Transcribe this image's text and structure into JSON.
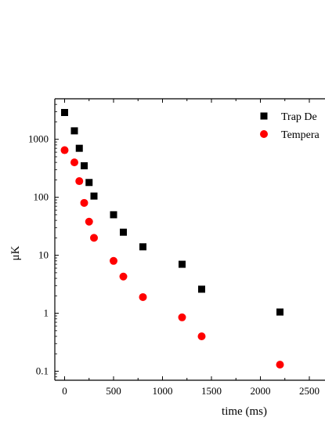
{
  "chart_data": {
    "type": "scatter",
    "xlabel": "time (ms)",
    "ylabel": "μK",
    "y_scale": "log",
    "xlim": [
      -100,
      2700
    ],
    "ylim": [
      0.07,
      5000
    ],
    "grid": false,
    "legend_position": "top-right",
    "x_ticks": [
      0,
      500,
      1000,
      1500,
      2000,
      2500
    ],
    "x_tick_labels": [
      "0",
      "500",
      "1000",
      "1500",
      "2000",
      "2500"
    ],
    "y_ticks": [
      0.1,
      1,
      10,
      100,
      1000
    ],
    "y_tick_labels": [
      "0.1",
      "1",
      "10",
      "100",
      "1000"
    ],
    "series": [
      {
        "name": "Trap De",
        "marker": "square",
        "color": "#000000",
        "points": [
          {
            "x": 0,
            "y": 2900
          },
          {
            "x": 100,
            "y": 1400
          },
          {
            "x": 150,
            "y": 700
          },
          {
            "x": 200,
            "y": 350
          },
          {
            "x": 250,
            "y": 180
          },
          {
            "x": 300,
            "y": 105
          },
          {
            "x": 500,
            "y": 50
          },
          {
            "x": 600,
            "y": 25
          },
          {
            "x": 800,
            "y": 14
          },
          {
            "x": 1200,
            "y": 7
          },
          {
            "x": 1400,
            "y": 2.6
          },
          {
            "x": 2200,
            "y": 1.05
          }
        ]
      },
      {
        "name": "Tempera",
        "marker": "circle",
        "color": "#ff0000",
        "points": [
          {
            "x": 0,
            "y": 650
          },
          {
            "x": 100,
            "y": 400
          },
          {
            "x": 150,
            "y": 190
          },
          {
            "x": 200,
            "y": 80
          },
          {
            "x": 250,
            "y": 38
          },
          {
            "x": 300,
            "y": 20
          },
          {
            "x": 500,
            "y": 8
          },
          {
            "x": 600,
            "y": 4.3
          },
          {
            "x": 800,
            "y": 1.9
          },
          {
            "x": 1200,
            "y": 0.85
          },
          {
            "x": 1400,
            "y": 0.4
          },
          {
            "x": 2200,
            "y": 0.13
          }
        ]
      }
    ]
  }
}
